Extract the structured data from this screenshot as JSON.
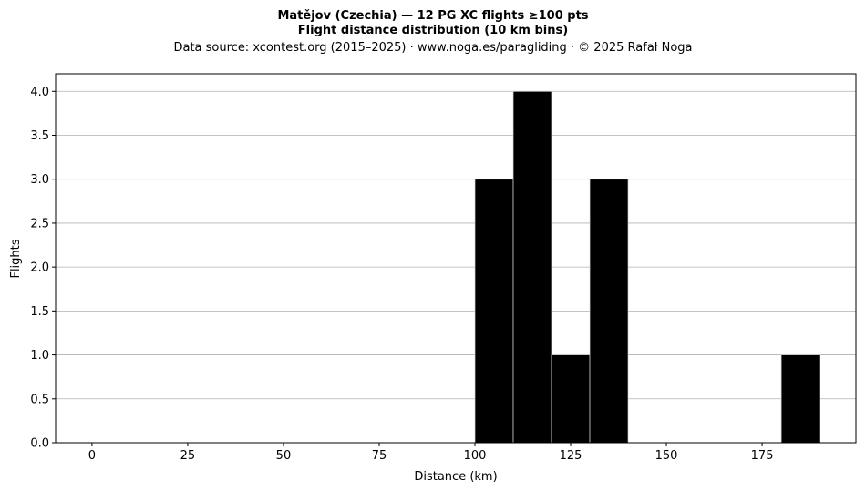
{
  "chart_data": {
    "type": "bar",
    "title": "Matějov (Czechia)  —  12 PG XC flights ≥100 pts",
    "title2": "Flight distance distribution (10 km bins)",
    "subtitle": "Data source: xcontest.org (2015–2025)  ·  www.noga.es/paragliding  ·  © 2025 Rafał Noga",
    "xlabel": "Distance (km)",
    "ylabel": "Flights",
    "xlim": [
      -9.5,
      199.5
    ],
    "ylim": [
      0,
      4.2
    ],
    "x_ticks": [
      0,
      25,
      50,
      75,
      100,
      125,
      150,
      175
    ],
    "x_tick_labels": [
      "0",
      "25",
      "50",
      "75",
      "100",
      "125",
      "150",
      "175"
    ],
    "y_ticks": [
      0,
      0.5,
      1,
      1.5,
      2,
      2.5,
      3,
      3.5,
      4
    ],
    "y_tick_labels": [
      "0.0",
      "0.5",
      "1.0",
      "1.5",
      "2.0",
      "2.5",
      "3.0",
      "3.5",
      "4.0"
    ],
    "grid": "y-major",
    "bin_width": 10,
    "bins": [
      {
        "start": 100,
        "end": 110,
        "count": 3
      },
      {
        "start": 110,
        "end": 120,
        "count": 4
      },
      {
        "start": 120,
        "end": 130,
        "count": 1
      },
      {
        "start": 130,
        "end": 140,
        "count": 3
      },
      {
        "start": 180,
        "end": 190,
        "count": 1
      }
    ],
    "colors": {
      "bar": "#000000",
      "bar_edge": "#d9d9d9",
      "grid": "#b0b0b0",
      "axes": "#000000"
    }
  }
}
